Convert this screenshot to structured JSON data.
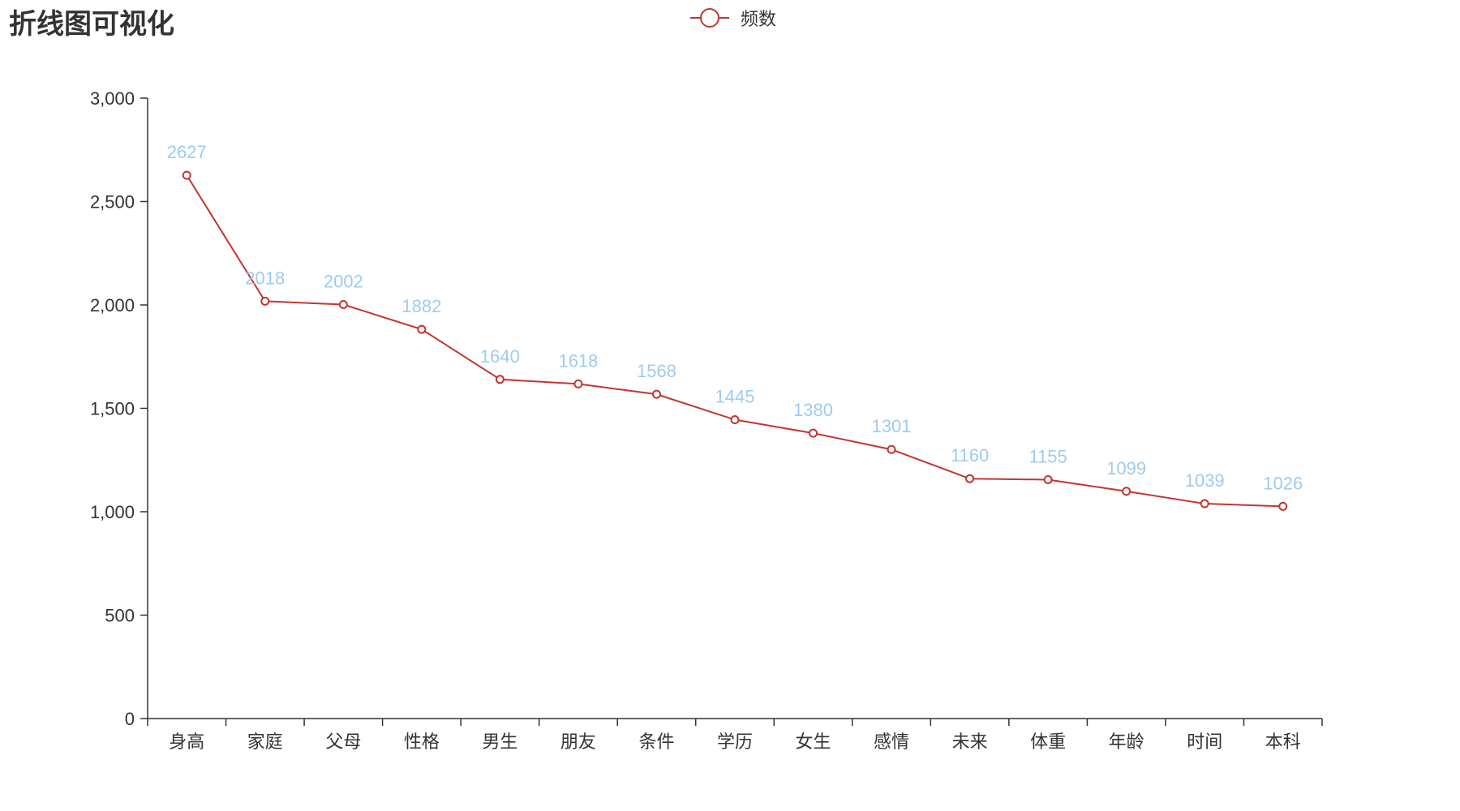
{
  "title": "折线图可视化",
  "legend": {
    "label": "频数",
    "color": "#c23531"
  },
  "colors": {
    "line": "#c23531",
    "label": "#9ecbf0",
    "axis": "#333333"
  },
  "chart_data": {
    "type": "line",
    "title": "折线图可视化",
    "categories": [
      "身高",
      "家庭",
      "父母",
      "性格",
      "男生",
      "朋友",
      "条件",
      "学历",
      "女生",
      "感情",
      "未来",
      "体重",
      "年龄",
      "时间",
      "本科"
    ],
    "series": [
      {
        "name": "频数",
        "values": [
          2627,
          2018,
          2002,
          1882,
          1640,
          1618,
          1568,
          1445,
          1380,
          1301,
          1160,
          1155,
          1099,
          1039,
          1026
        ]
      }
    ],
    "ylim": [
      0,
      3000
    ],
    "yticks": [
      0,
      500,
      1000,
      1500,
      2000,
      2500,
      3000
    ],
    "ytick_labels": [
      "0",
      "500",
      "1,000",
      "1,500",
      "2,000",
      "2,500",
      "3,000"
    ],
    "grid": false,
    "legend_position": "top-center",
    "data_labels": true
  }
}
